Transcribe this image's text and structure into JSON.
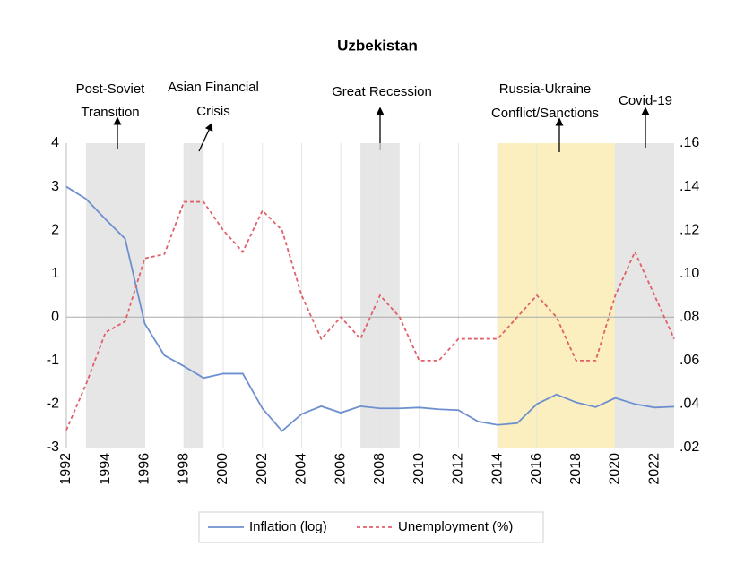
{
  "chart_data": {
    "type": "line",
    "title": "Uzbekistan",
    "x": [
      1992,
      1993,
      1994,
      1995,
      1996,
      1997,
      1998,
      1999,
      2000,
      2001,
      2002,
      2003,
      2004,
      2005,
      2006,
      2007,
      2008,
      2009,
      2010,
      2011,
      2012,
      2013,
      2014,
      2015,
      2016,
      2017,
      2018,
      2019,
      2020,
      2021,
      2022,
      2023
    ],
    "xlim": [
      1992,
      2023
    ],
    "xticks": [
      1992,
      1994,
      1996,
      1998,
      2000,
      2002,
      2004,
      2006,
      2008,
      2010,
      2012,
      2014,
      2016,
      2018,
      2020,
      2022
    ],
    "ylim": [
      -3,
      4
    ],
    "yticks": [
      -3,
      -2,
      -1,
      0,
      1,
      2,
      3,
      4
    ],
    "y2lim": [
      0.02,
      0.16
    ],
    "y2ticks": [
      {
        "value": 0.02,
        "label": ".02"
      },
      {
        "value": 0.04,
        "label": ".04"
      },
      {
        "value": 0.06,
        "label": ".06"
      },
      {
        "value": 0.08,
        "label": ".08"
      },
      {
        "value": 0.1,
        "label": ".10"
      },
      {
        "value": 0.12,
        "label": ".12"
      },
      {
        "value": 0.14,
        "label": ".14"
      },
      {
        "value": 0.16,
        "label": ".16"
      }
    ],
    "grid": true,
    "series": [
      {
        "name": "Inflation (log)",
        "color": "#6e8fcf",
        "dash": false,
        "values": [
          3.0,
          2.72,
          2.25,
          1.8,
          -0.15,
          -0.88,
          -1.13,
          -1.4,
          -1.3,
          -1.3,
          -2.1,
          -2.62,
          -2.23,
          -2.05,
          -2.2,
          -2.05,
          -2.1,
          -2.1,
          -2.08,
          -2.12,
          -2.14,
          -2.4,
          -2.48,
          -2.44,
          -2.0,
          -1.78,
          -1.96,
          -2.07,
          -1.86,
          -2.0,
          -2.08,
          -2.06
        ]
      },
      {
        "name": "Unemployment (%)",
        "color": "#e0606a",
        "dash": true,
        "axis": "y2",
        "values": [
          0.028,
          0.049,
          0.073,
          0.078,
          0.107,
          0.109,
          0.133,
          0.133,
          0.12,
          0.11,
          0.129,
          0.12,
          0.09,
          0.07,
          0.08,
          0.07,
          0.09,
          0.08,
          0.06,
          0.06,
          0.07,
          0.07,
          0.07,
          0.08,
          0.09,
          0.08,
          0.06,
          0.06,
          0.09,
          0.11,
          0.09,
          0.07
        ]
      }
    ],
    "periods": [
      {
        "label": [
          "Post-Soviet",
          "Transition"
        ],
        "start": 1993,
        "end": 1996,
        "color": "#e6e6e6"
      },
      {
        "label": [
          "Asian Financial",
          "Crisis"
        ],
        "start": 1998,
        "end": 1999,
        "color": "#e6e6e6"
      },
      {
        "label": [
          "Great Recession"
        ],
        "start": 2007,
        "end": 2009,
        "color": "#e6e6e6"
      },
      {
        "label": [
          "Russia-Ukraine",
          "Conflict/Sanctions"
        ],
        "start": 2014,
        "end": 2020,
        "color": "#fbefbf"
      },
      {
        "label": [
          "Covid-19"
        ],
        "start": 2020,
        "end": 2023,
        "color": "#e6e6e6"
      }
    ],
    "legend": "bottom"
  }
}
